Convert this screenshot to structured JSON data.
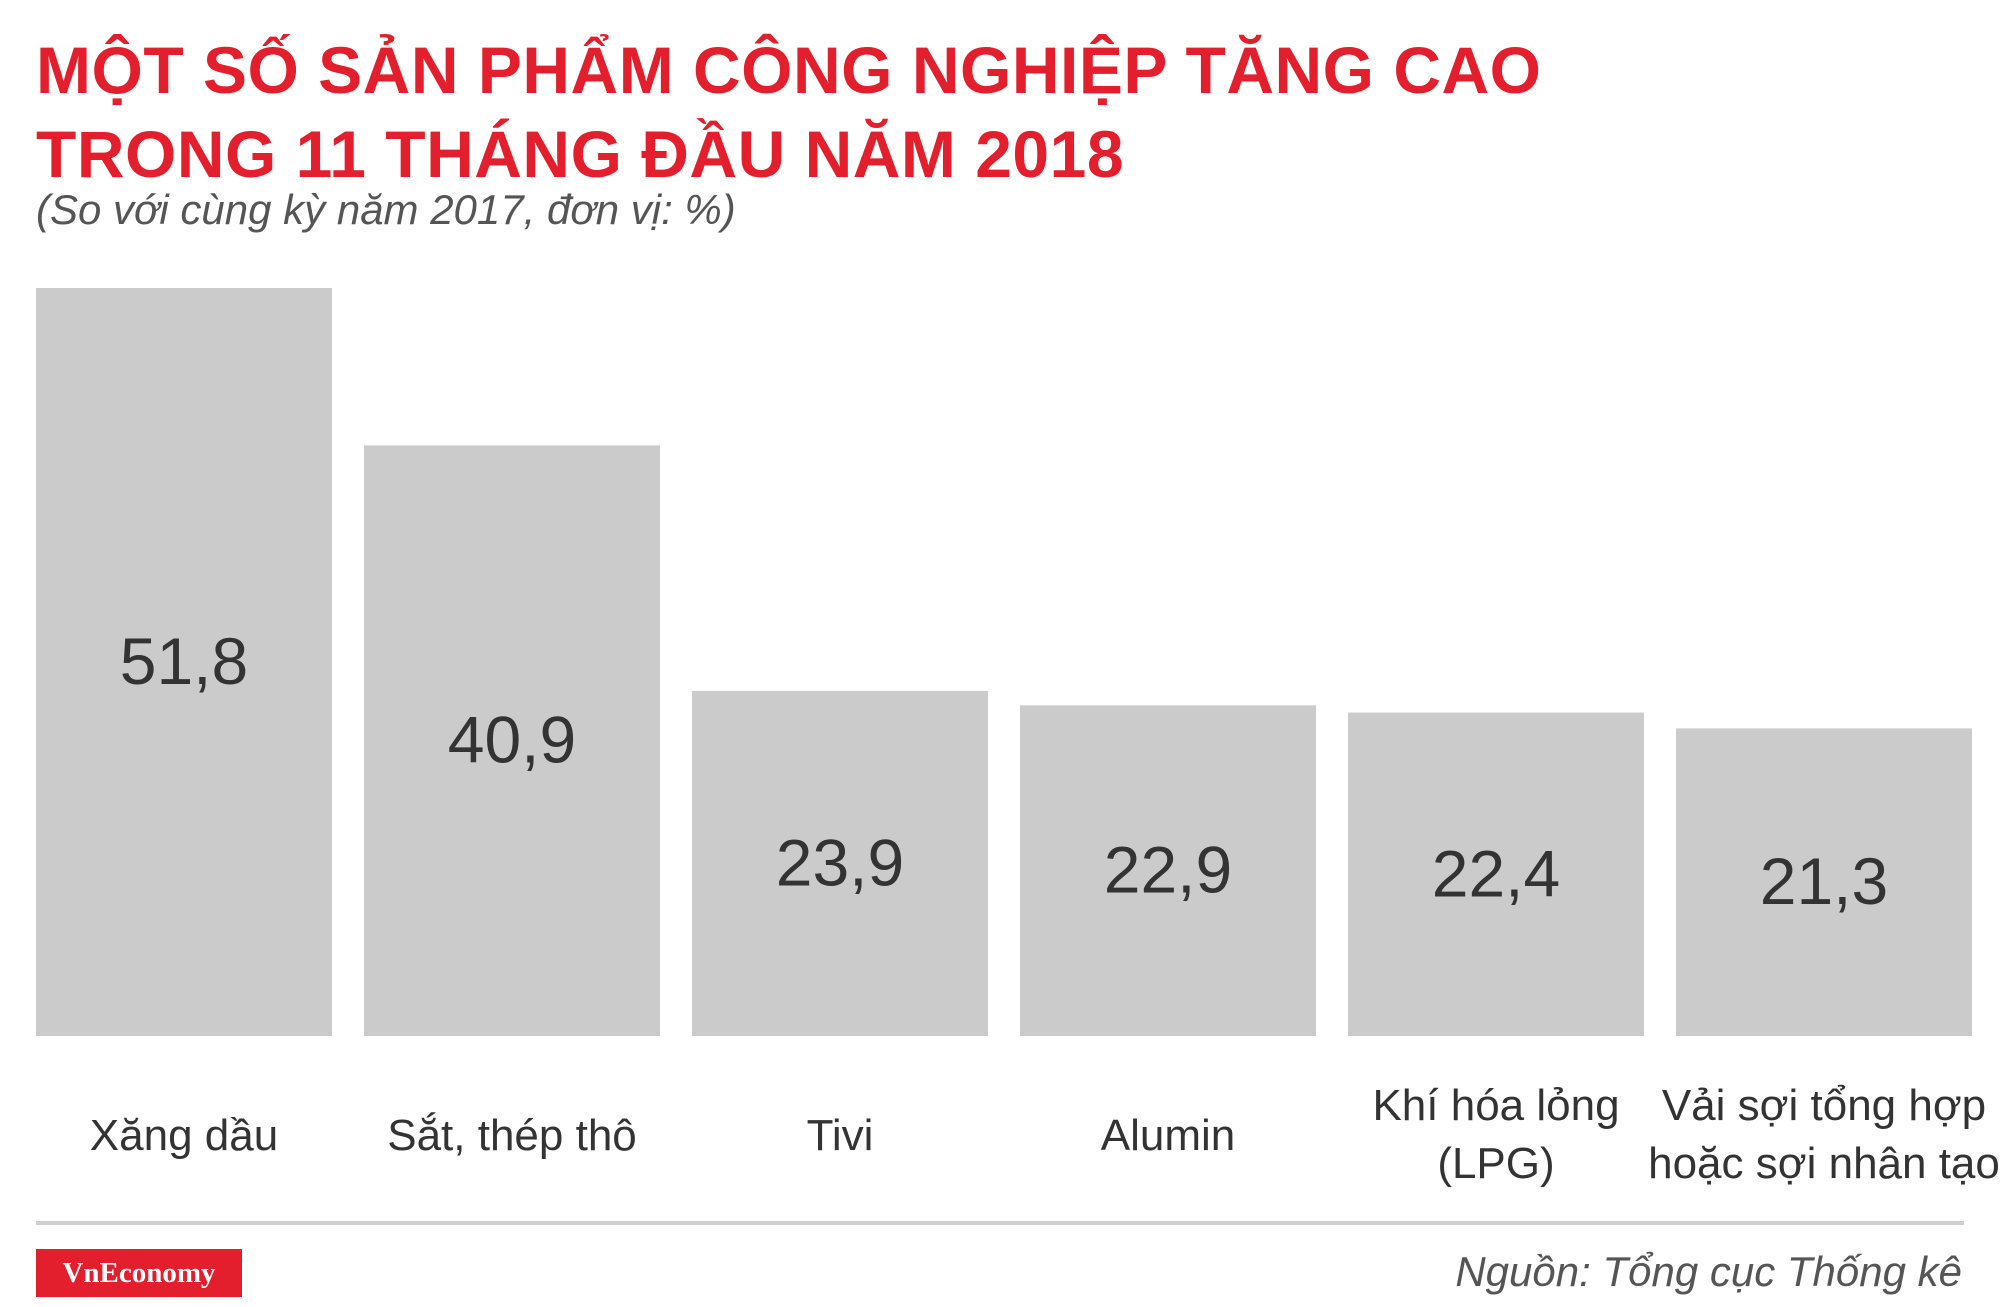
{
  "header": {
    "title_line1": "MỘT SỐ SẢN PHẨM CÔNG NGHIỆP TĂNG CAO",
    "title_line2": "TRONG 11 THÁNG ĐẦU NĂM 2018",
    "subtitle": "(So với cùng kỳ năm 2017, đơn vị: %)"
  },
  "footer": {
    "logo": "VnEconomy",
    "source": "Nguồn: Tổng cục Thống kê"
  },
  "colors": {
    "title": "#e31e2d",
    "bar": "#cccbcc",
    "value_text": "#333333",
    "label_text": "#333333"
  },
  "chart_data": {
    "type": "bar",
    "categories": [
      [
        "Xăng dầu"
      ],
      [
        "Sắt, thép thô"
      ],
      [
        "Tivi"
      ],
      [
        "Alumin"
      ],
      [
        "Khí hóa lỏng",
        "(LPG)"
      ],
      [
        "Vải sợi tổng hợp",
        "hoặc sợi nhân tạo"
      ]
    ],
    "values": [
      51.8,
      40.9,
      23.9,
      22.9,
      22.4,
      21.3
    ],
    "value_labels": [
      "51,8",
      "40,9",
      "23,9",
      "22,9",
      "22,4",
      "21,3"
    ],
    "ylim": [
      0,
      51.8
    ],
    "grid": false,
    "legend": "none"
  }
}
